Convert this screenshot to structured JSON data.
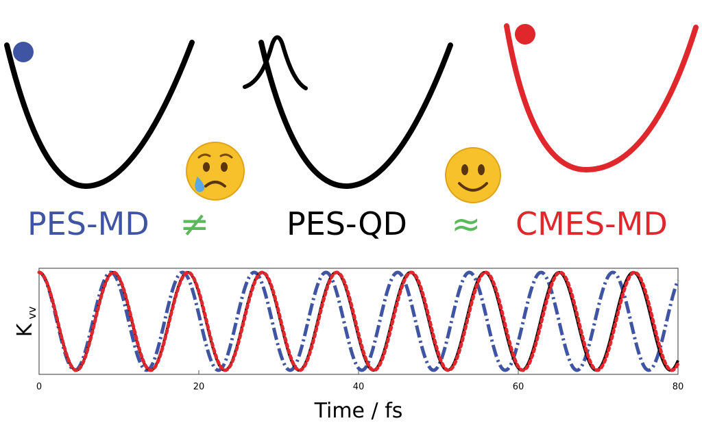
{
  "labels": {
    "pes_md": "PES-MD",
    "not_equal": "≠",
    "pes_qd": "PES-QD",
    "approx": "≈",
    "cmes_md": "CMES-MD"
  },
  "colors": {
    "blue": "#3f55a3",
    "red": "#e0272c",
    "green": "#5cb85c",
    "black": "#000000",
    "emoji_face": "#f6c12b",
    "tear": "#5aa9e6"
  },
  "icons": {
    "sad": "crying-face-icon",
    "happy": "smiling-face-icon"
  },
  "chart_data": {
    "type": "line",
    "xlabel": "Time / fs",
    "ylabel": "K",
    "ylabel_sub": "vv",
    "xlim": [
      0,
      80
    ],
    "xticks": [
      0,
      20,
      40,
      60,
      80
    ],
    "grid": false,
    "series": [
      {
        "style": "dash-dot",
        "color": "#3f55a3",
        "period_fs": 8.98
      },
      {
        "style": "solid",
        "color": "#000000",
        "period_fs": 9.3
      },
      {
        "style": "dotted",
        "color": "#e0272c",
        "period_fs": 9.32
      }
    ]
  }
}
